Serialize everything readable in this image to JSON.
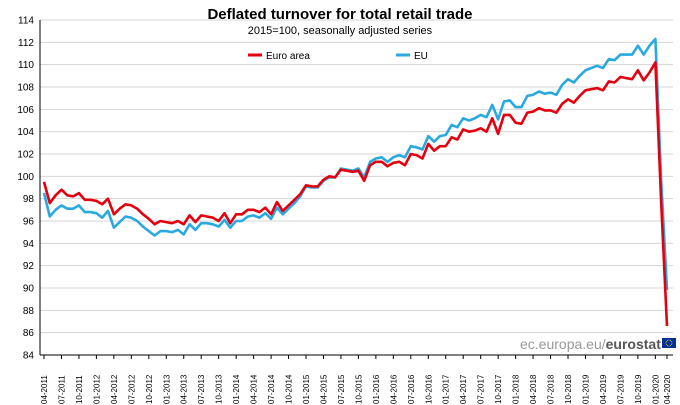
{
  "chart_data": {
    "type": "line",
    "title": "Deflated turnover for total retail trade",
    "subtitle": "2015=100, seasonally adjusted series",
    "xlabel": "",
    "ylabel": "",
    "ylim": [
      84,
      114
    ],
    "yticks": [
      84,
      86,
      88,
      90,
      92,
      94,
      96,
      98,
      100,
      102,
      104,
      106,
      108,
      110,
      112,
      114
    ],
    "grid": "horizontal",
    "legend_position": "top",
    "x_tick_labels": [
      "04-2011",
      "07-2011",
      "10-2011",
      "01-2012",
      "04-2012",
      "07-2012",
      "10-2012",
      "01-2013",
      "04-2013",
      "07-2013",
      "10-2013",
      "01-2014",
      "04-2014",
      "07-2014",
      "10-2014",
      "01-2015",
      "04-2015",
      "07-2015",
      "10-2015",
      "01-2016",
      "04-2016",
      "07-2016",
      "10-2016",
      "01-2017",
      "04-2017",
      "07-2017",
      "10-2017",
      "01-2018",
      "04-2018",
      "07-2018",
      "10-2018",
      "01-2019",
      "04-2019",
      "07-2019",
      "10-2019",
      "01-2020",
      "04-2020"
    ],
    "series": [
      {
        "name": "Euro area",
        "color": "#e3000f",
        "values": [
          99.5,
          97.6,
          98.3,
          98.8,
          98.3,
          98.2,
          98.5,
          97.9,
          97.9,
          97.8,
          97.5,
          98.0,
          96.6,
          97.1,
          97.5,
          97.4,
          97.1,
          96.6,
          96.2,
          95.7,
          96.0,
          95.9,
          95.8,
          96.0,
          95.7,
          96.5,
          95.9,
          96.5,
          96.4,
          96.3,
          96.0,
          96.7,
          95.8,
          96.6,
          96.6,
          97.0,
          97.0,
          96.8,
          97.2,
          96.6,
          97.7,
          96.9,
          97.4,
          97.9,
          98.4,
          99.2,
          99.1,
          99.1,
          99.7,
          100.0,
          99.9,
          100.6,
          100.5,
          100.4,
          100.5,
          99.6,
          101.0,
          101.3,
          101.3,
          100.9,
          101.2,
          101.3,
          101.0,
          102.0,
          101.9,
          101.6,
          102.9,
          102.3,
          102.7,
          102.7,
          103.5,
          103.3,
          104.2,
          104.0,
          104.1,
          104.3,
          104.0,
          105.2,
          103.8,
          105.5,
          105.5,
          104.8,
          104.7,
          105.7,
          105.8,
          106.1,
          105.9,
          105.9,
          105.7,
          106.5,
          106.9,
          106.6,
          107.2,
          107.7,
          107.8,
          107.9,
          107.7,
          108.5,
          108.4,
          108.9,
          108.8,
          108.7,
          109.5,
          108.6,
          109.3,
          110.2,
          97.6,
          86.6
        ]
      },
      {
        "name": "EU",
        "color": "#2aa9e0",
        "values": [
          98.5,
          96.4,
          97.0,
          97.4,
          97.1,
          97.1,
          97.4,
          96.8,
          96.8,
          96.7,
          96.3,
          96.9,
          95.4,
          95.9,
          96.4,
          96.3,
          96.0,
          95.5,
          95.1,
          94.7,
          95.1,
          95.1,
          95.0,
          95.2,
          94.8,
          95.7,
          95.2,
          95.8,
          95.8,
          95.7,
          95.5,
          96.1,
          95.4,
          96.0,
          96.0,
          96.4,
          96.5,
          96.3,
          96.7,
          96.2,
          97.2,
          96.6,
          97.1,
          97.6,
          98.2,
          99.1,
          99.0,
          99.0,
          99.6,
          99.9,
          99.9,
          100.7,
          100.6,
          100.5,
          100.7,
          99.9,
          101.3,
          101.6,
          101.7,
          101.3,
          101.7,
          101.9,
          101.7,
          102.7,
          102.6,
          102.4,
          103.6,
          103.1,
          103.6,
          103.7,
          104.6,
          104.4,
          105.2,
          105.0,
          105.2,
          105.5,
          105.3,
          106.4,
          105.1,
          106.7,
          106.8,
          106.2,
          106.2,
          107.2,
          107.3,
          107.6,
          107.4,
          107.5,
          107.3,
          108.2,
          108.7,
          108.4,
          109.0,
          109.5,
          109.7,
          109.9,
          109.7,
          110.5,
          110.4,
          110.9,
          110.9,
          110.9,
          111.7,
          110.9,
          111.7,
          112.3,
          99.6,
          89.8
        ]
      }
    ]
  },
  "watermark": {
    "light": "ec.europa.eu/",
    "bold": "eurostat"
  },
  "colors": {
    "grid": "#d4d4d4",
    "euro_area": "#e3000f",
    "eu": "#2aa9e0",
    "flag_blue": "#003399",
    "flag_stars": "#ffcc00"
  }
}
